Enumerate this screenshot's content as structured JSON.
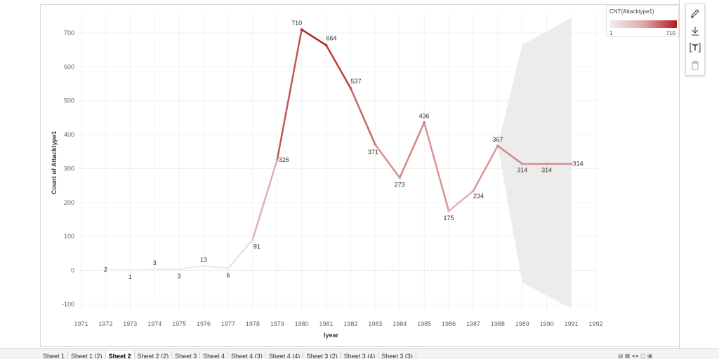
{
  "chart_data": {
    "type": "line",
    "xlabel": "Iyear",
    "ylabel": "Count of Attacktype1",
    "x_ticks": [
      "1971",
      "1972",
      "1973",
      "1974",
      "1975",
      "1976",
      "1977",
      "1978",
      "1979",
      "1980",
      "1981",
      "1982",
      "1983",
      "1984",
      "1985",
      "1986",
      "1987",
      "1988",
      "1989",
      "1990",
      "1991",
      "1992"
    ],
    "y_ticks": [
      -100,
      0,
      100,
      200,
      300,
      400,
      500,
      600,
      700
    ],
    "xlim": [
      1970.9,
      1992.1
    ],
    "ylim": [
      -125,
      760
    ],
    "grid": true,
    "series": [
      {
        "x": [
          1972,
          1973,
          1974,
          1975,
          1976,
          1977,
          1978,
          1979,
          1980,
          1981,
          1982,
          1983,
          1984,
          1985,
          1986,
          1987,
          1988
        ],
        "values": [
          2,
          1,
          3,
          3,
          13,
          6,
          91,
          326,
          710,
          664,
          537,
          371,
          273,
          436,
          175,
          234,
          367
        ],
        "labels": [
          "2",
          "1",
          "3",
          "3",
          "13",
          "6",
          "91",
          "326",
          "710",
          "664",
          "537",
          "371",
          "273",
          "436",
          "175",
          "234",
          "367"
        ]
      }
    ],
    "forecast": {
      "x": [
        1988,
        1989,
        1990,
        1991
      ],
      "values": [
        367,
        314,
        314,
        314
      ],
      "labels": [
        "314",
        "314",
        "314"
      ],
      "band_upper": [
        367,
        665,
        705,
        745
      ],
      "band_lower": [
        367,
        -35,
        -75,
        -112
      ]
    },
    "color_range": {
      "min": 1,
      "max": 710,
      "low_color": "#f4eeee",
      "high_color": "#b31b1b"
    },
    "band_color": "#ececec"
  },
  "legend": {
    "title": "CNT(Attacktype1)",
    "min": "1",
    "max": "710"
  },
  "toolbar": {
    "items": [
      {
        "name": "pencil-icon",
        "glyph": "✎"
      },
      {
        "name": "download-icon",
        "glyph": "⤓"
      },
      {
        "name": "text-icon",
        "glyph": "[T]"
      },
      {
        "name": "trash-icon",
        "glyph": "🗑"
      }
    ]
  },
  "tabs": [
    {
      "label": "Sheet 1",
      "active": false
    },
    {
      "label": "Sheet 1 (2)",
      "active": false
    },
    {
      "label": "Sheet 2",
      "active": true
    },
    {
      "label": "Sheet 2 (2)",
      "active": false
    },
    {
      "label": "Sheet 3",
      "active": false
    },
    {
      "label": "Sheet 4",
      "active": false
    },
    {
      "label": "Sheet 4 (3)",
      "active": false
    },
    {
      "label": "Sheet 4 (4)",
      "active": false
    },
    {
      "label": "Sheet 3 (2)",
      "active": false
    },
    {
      "label": "Sheet 3 (4)",
      "active": false
    },
    {
      "label": "Sheet 3 (3)",
      "active": false
    }
  ]
}
